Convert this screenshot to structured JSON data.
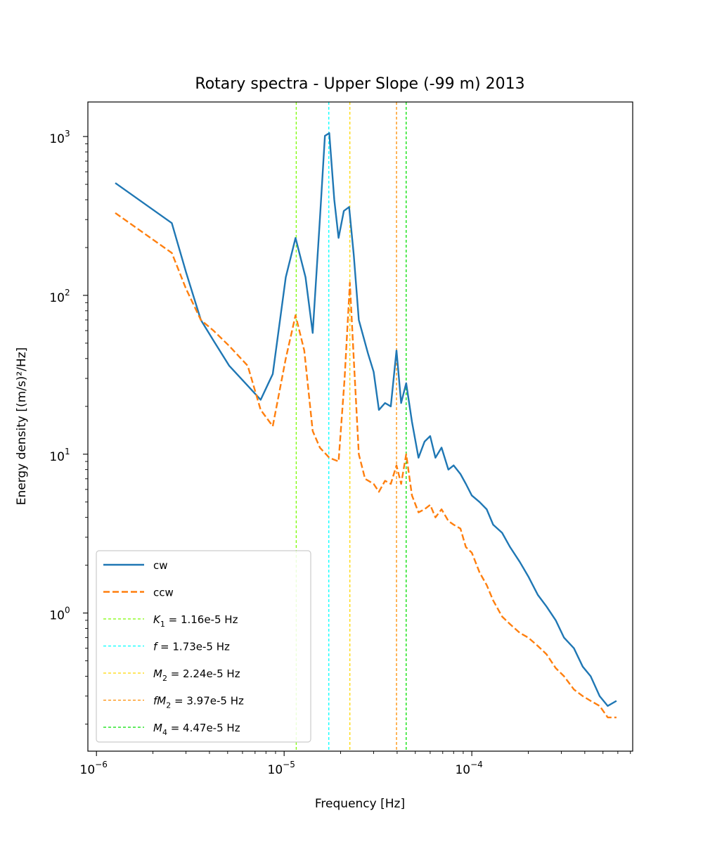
{
  "chart_data": {
    "type": "line",
    "title": "Rotary spectra - Upper Slope (-99 m) 2013",
    "xlabel": "Frequency [Hz]",
    "ylabel": "Energy density [(m/s)²/Hz]",
    "xscale": "log",
    "yscale": "log",
    "xlim": [
      9e-07,
      0.00072
    ],
    "ylim": [
      0.135,
      1650
    ],
    "x_ticks": [
      {
        "value": 1e-06,
        "base": "10",
        "exp": "−6"
      },
      {
        "value": 1e-05,
        "base": "10",
        "exp": "−5"
      },
      {
        "value": 0.0001,
        "base": "10",
        "exp": "−4"
      }
    ],
    "y_ticks": [
      {
        "value": 1,
        "base": "10",
        "exp": "0"
      },
      {
        "value": 10,
        "base": "10",
        "exp": "1"
      },
      {
        "value": 100,
        "base": "10",
        "exp": "2"
      },
      {
        "value": 1000,
        "base": "10",
        "exp": "3"
      }
    ],
    "grid": false,
    "legend_position": "lower-left",
    "series": [
      {
        "name": "cw",
        "color": "#1f77b4",
        "style": "solid",
        "x": [
          1.26e-06,
          2.52e-06,
          3e-06,
          3.6e-06,
          4.2e-06,
          5.1e-06,
          6.4e-06,
          7.5e-06,
          8.7e-06,
          1.02e-05,
          1.15e-05,
          1.3e-05,
          1.42e-05,
          1.55e-05,
          1.65e-05,
          1.74e-05,
          1.85e-05,
          1.95e-05,
          2.08e-05,
          2.22e-05,
          2.35e-05,
          2.5e-05,
          2.8e-05,
          3e-05,
          3.2e-05,
          3.45e-05,
          3.7e-05,
          3.97e-05,
          4.2e-05,
          4.47e-05,
          4.8e-05,
          5.2e-05,
          5.6e-05,
          6e-05,
          6.4e-05,
          6.9e-05,
          7.5e-05,
          8e-05,
          8.7e-05,
          9.3e-05,
          0.0001,
          0.00011,
          0.00012,
          0.00013,
          0.000145,
          0.00016,
          0.00018,
          0.0002,
          0.000225,
          0.00025,
          0.00028,
          0.00031,
          0.00035,
          0.00039,
          0.00043,
          0.00048,
          0.00053,
          0.00059
        ],
        "y": [
          510,
          285,
          140,
          70,
          52,
          36,
          27,
          22,
          32,
          130,
          230,
          130,
          58,
          300,
          1010,
          1050,
          400,
          230,
          340,
          360,
          180,
          70,
          43,
          33,
          19,
          21,
          20,
          45,
          21,
          28,
          16,
          9.5,
          12,
          13,
          9.5,
          11,
          8,
          8.5,
          7.5,
          6.5,
          5.5,
          5.0,
          4.5,
          3.6,
          3.2,
          2.6,
          2.1,
          1.7,
          1.3,
          1.1,
          0.9,
          0.7,
          0.6,
          0.46,
          0.4,
          0.3,
          0.26,
          0.28
        ]
      },
      {
        "name": "ccw",
        "color": "#ff7f0e",
        "style": "dashed",
        "x": [
          1.26e-06,
          2.52e-06,
          3e-06,
          3.6e-06,
          4.2e-06,
          5.1e-06,
          6.4e-06,
          7.5e-06,
          8.7e-06,
          1.02e-05,
          1.15e-05,
          1.28e-05,
          1.42e-05,
          1.55e-05,
          1.74e-05,
          1.95e-05,
          2.1e-05,
          2.24e-05,
          2.35e-05,
          2.5e-05,
          2.7e-05,
          3e-05,
          3.2e-05,
          3.45e-05,
          3.7e-05,
          3.97e-05,
          4.2e-05,
          4.47e-05,
          4.8e-05,
          5.2e-05,
          5.6e-05,
          6e-05,
          6.4e-05,
          6.9e-05,
          7.5e-05,
          8e-05,
          8.7e-05,
          9.3e-05,
          0.0001,
          0.00011,
          0.00012,
          0.00013,
          0.000145,
          0.00016,
          0.00018,
          0.0002,
          0.000225,
          0.00025,
          0.00028,
          0.00031,
          0.00035,
          0.00039,
          0.00043,
          0.00048,
          0.00053,
          0.00059
        ],
        "y": [
          330,
          185,
          110,
          70,
          60,
          48,
          36,
          19,
          15,
          40,
          75,
          45,
          14,
          11,
          9.5,
          9.0,
          30,
          120,
          40,
          10,
          7,
          6.5,
          5.8,
          6.8,
          6.5,
          8.5,
          6.5,
          10,
          5.5,
          4.3,
          4.5,
          4.8,
          4.0,
          4.5,
          3.8,
          3.6,
          3.4,
          2.6,
          2.4,
          1.8,
          1.5,
          1.2,
          0.95,
          0.85,
          0.75,
          0.7,
          0.62,
          0.55,
          0.45,
          0.4,
          0.33,
          0.3,
          0.28,
          0.26,
          0.22,
          0.22
        ]
      }
    ],
    "reference_lines": [
      {
        "label_sym": "K",
        "label_sub": "1",
        "label_text": " = 1.16e-5 Hz",
        "x": 1.16e-05,
        "color": "#7cfc00"
      },
      {
        "label_sym": "f",
        "label_sub": "",
        "label_text": " = 1.73e-5 Hz",
        "x": 1.73e-05,
        "color": "#00ffff"
      },
      {
        "label_sym": "M",
        "label_sub": "2",
        "label_text": " = 2.24e-5 Hz",
        "x": 2.24e-05,
        "color": "#ffd700"
      },
      {
        "label_sym": "fM",
        "label_sub": "2",
        "label_text": " = 3.97e-5 Hz",
        "x": 3.97e-05,
        "color": "#ff8c00"
      },
      {
        "label_sym": "M",
        "label_sub": "4",
        "label_text": " = 4.47e-5 Hz",
        "x": 4.47e-05,
        "color": "#00e000"
      }
    ]
  }
}
